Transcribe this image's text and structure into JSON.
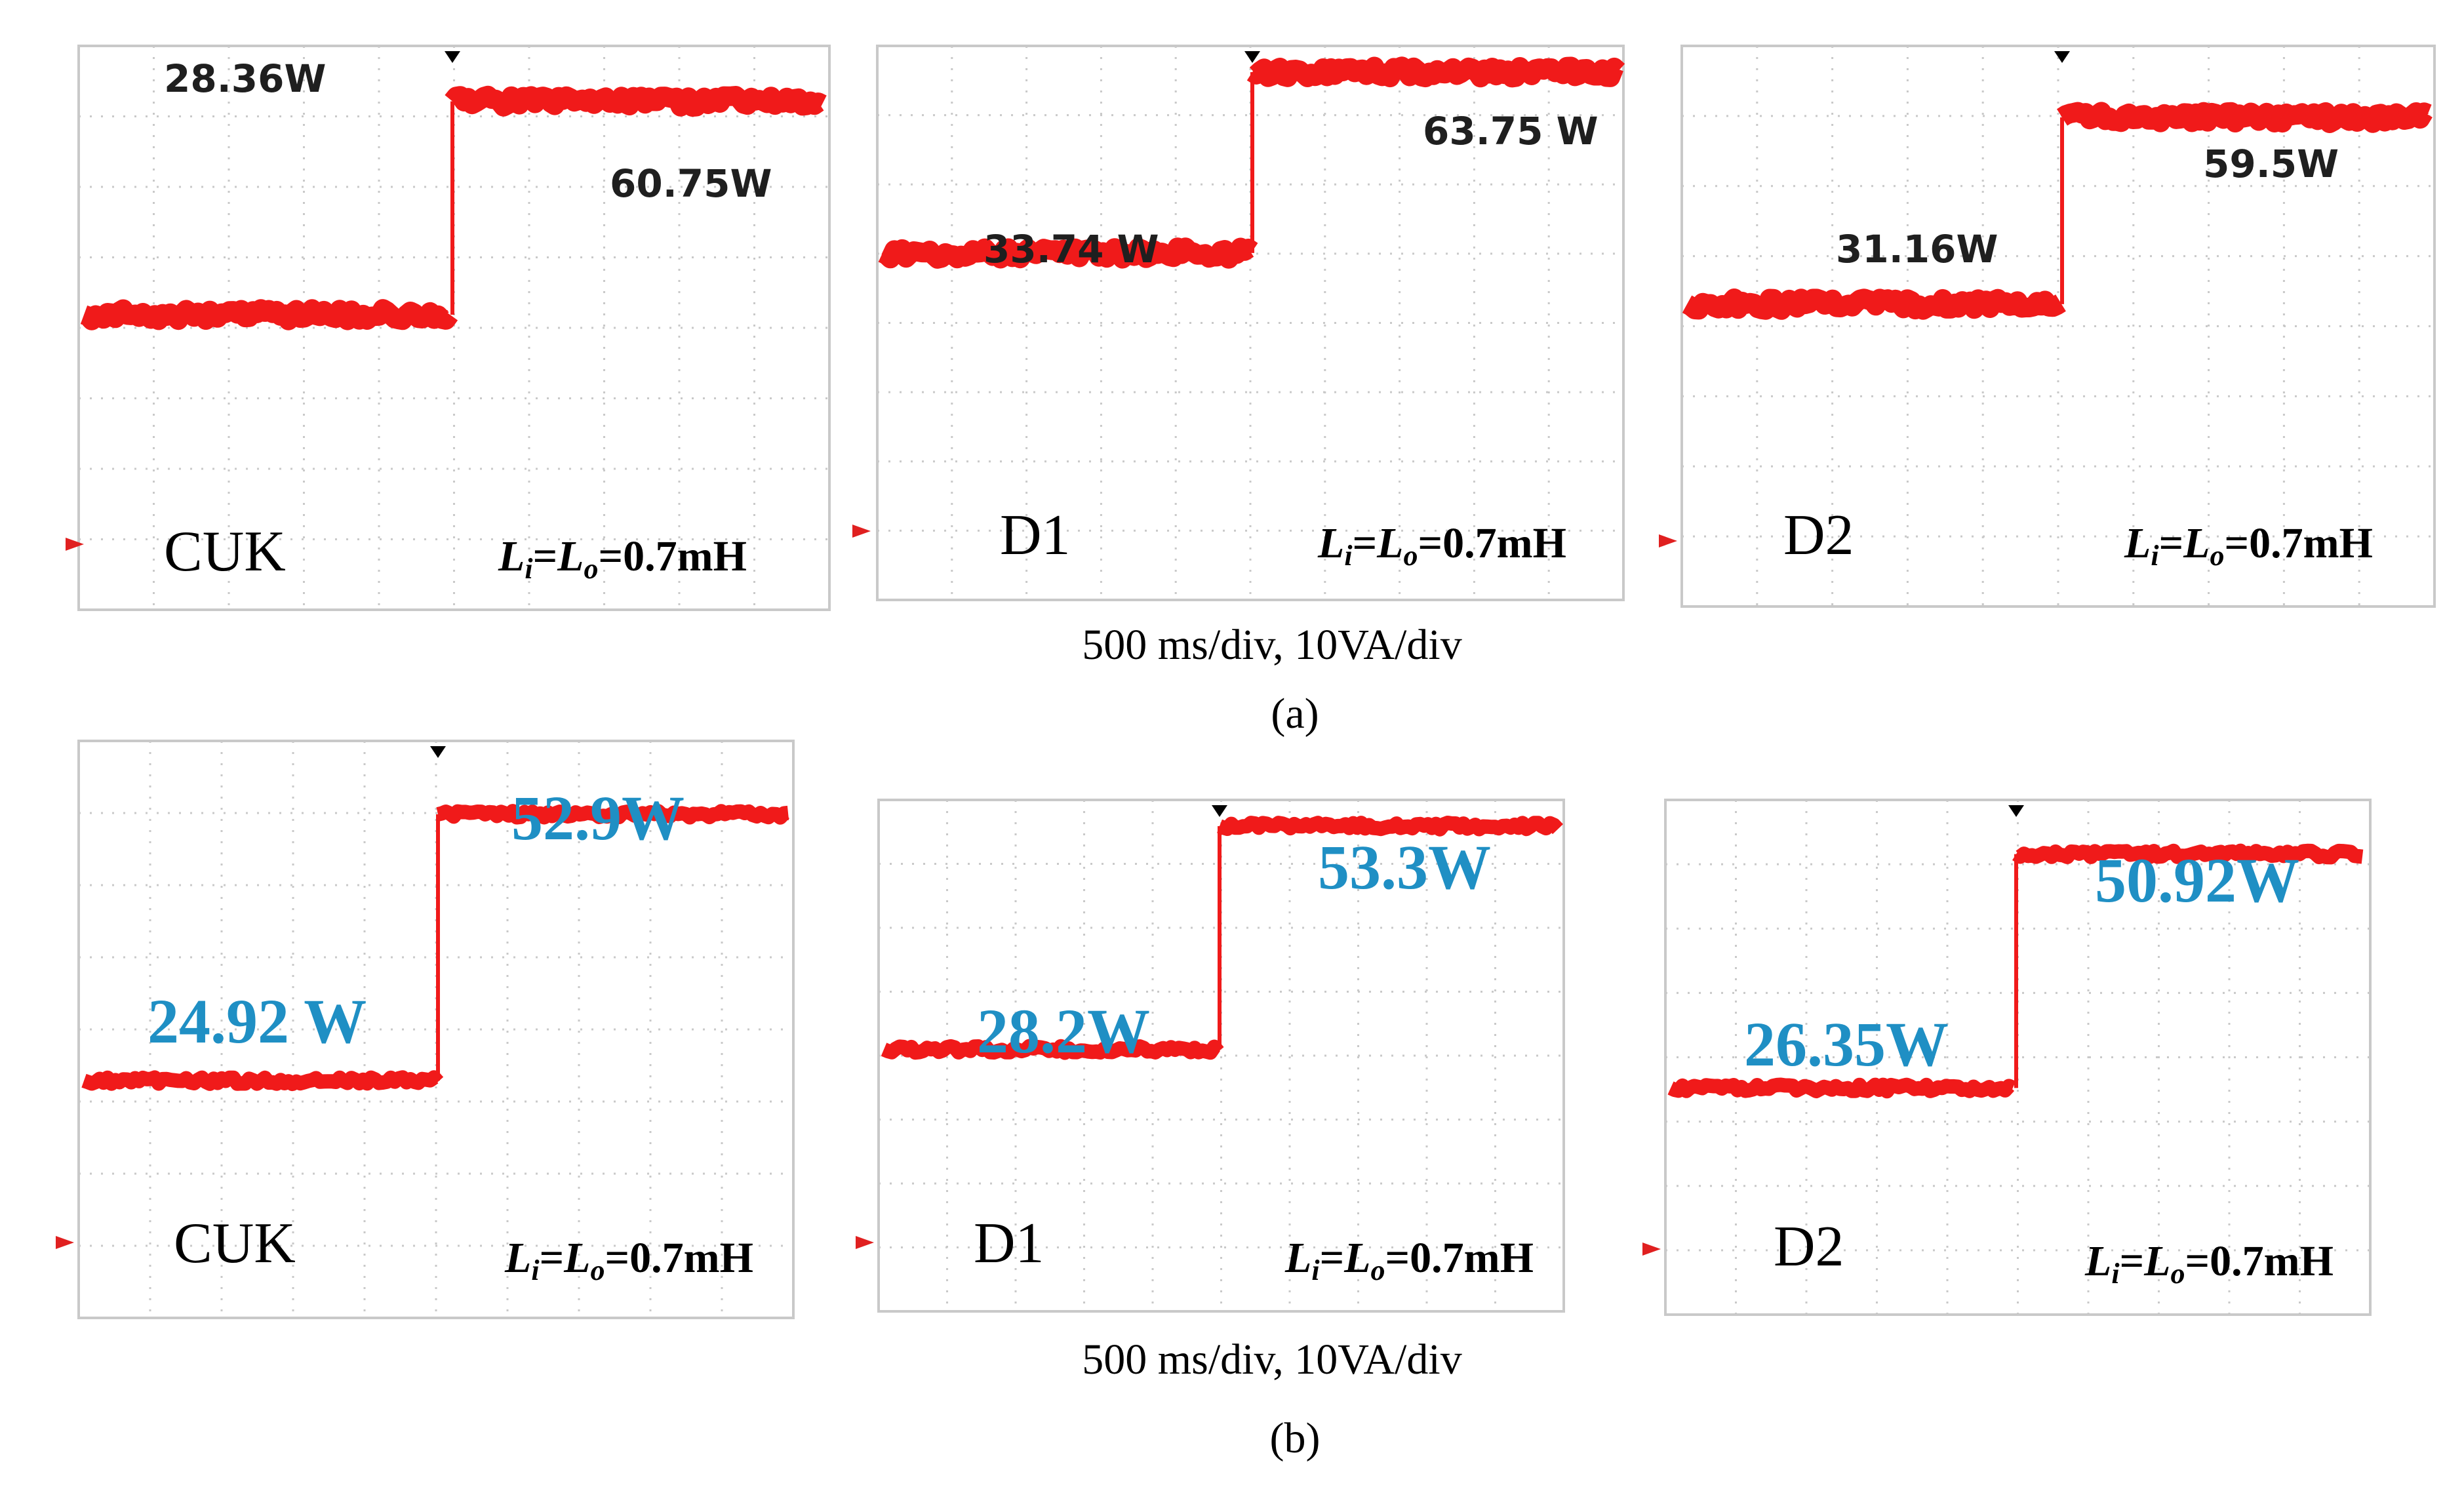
{
  "figure": {
    "colors": {
      "trace": "#f01a1a",
      "value_row_a": "#1f1f1f",
      "value_row_b": "#1f8fc4",
      "grid": "#c9c9c9",
      "background": "#ffffff"
    },
    "rows": [
      {
        "tag": "(a)",
        "scale_caption": "500 ms/div, 10VA/div"
      },
      {
        "tag": "(b)",
        "scale_caption": "500 ms/div, 10VA/div"
      }
    ]
  },
  "chart_data": [
    {
      "type": "line",
      "row": "(a)",
      "title": "CUK",
      "annotation": "Li=Lo=0.7mH",
      "step_labels": {
        "before": "28.36W",
        "after": "60.75W"
      },
      "series": [
        {
          "step_before_W": 28.36,
          "step_after_W": 60.75
        }
      ],
      "x_scale": "500 ms/div",
      "y_scale": "10VA/div",
      "grid": true
    },
    {
      "type": "line",
      "row": "(a)",
      "title": "D1",
      "annotation": "Li=Lo=0.7mH",
      "step_labels": {
        "before": "33.74 W",
        "after": "63.75 W"
      },
      "series": [
        {
          "step_before_W": 33.74,
          "step_after_W": 63.75
        }
      ],
      "x_scale": "500 ms/div",
      "y_scale": "10VA/div",
      "grid": true
    },
    {
      "type": "line",
      "row": "(a)",
      "title": "D2",
      "annotation": "Li=Lo=0.7mH",
      "step_labels": {
        "before": "31.16W",
        "after": "59.5W"
      },
      "series": [
        {
          "step_before_W": 31.16,
          "step_after_W": 59.5
        }
      ],
      "x_scale": "500 ms/div",
      "y_scale": "10VA/div",
      "grid": true
    },
    {
      "type": "line",
      "row": "(b)",
      "title": "CUK",
      "annotation": "Li=Lo=0.7mH",
      "step_labels": {
        "before": "24.92 W",
        "after": "52.9W"
      },
      "series": [
        {
          "step_before_W": 24.92,
          "step_after_W": 52.9
        }
      ],
      "x_scale": "500 ms/div",
      "y_scale": "10VA/div",
      "grid": true
    },
    {
      "type": "line",
      "row": "(b)",
      "title": "D1",
      "annotation": "Li=Lo=0.7mH",
      "step_labels": {
        "before": "28.2W",
        "after": "53.3W"
      },
      "series": [
        {
          "step_before_W": 28.2,
          "step_after_W": 53.3
        }
      ],
      "x_scale": "500 ms/div",
      "y_scale": "10VA/div",
      "grid": true
    },
    {
      "type": "line",
      "row": "(b)",
      "title": "D2",
      "annotation": "Li=Lo=0.7mH",
      "step_labels": {
        "before": "26.35W",
        "after": "50.92W"
      },
      "series": [
        {
          "step_before_W": 26.35,
          "step_after_W": 50.92
        }
      ],
      "x_scale": "500 ms/div",
      "y_scale": "10VA/div",
      "grid": true
    }
  ]
}
